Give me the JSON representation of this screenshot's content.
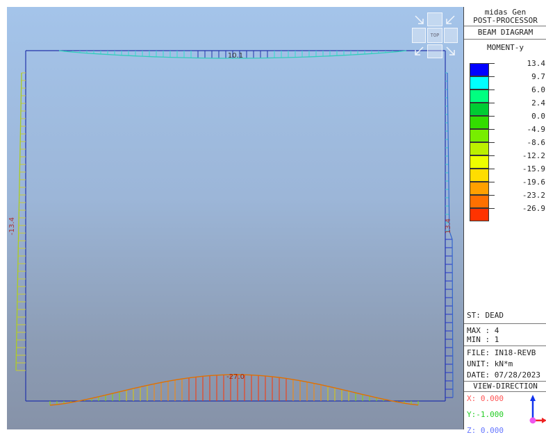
{
  "app": {
    "title": "midas Gen",
    "subtitle": "POST-PROCESSOR"
  },
  "panel": {
    "diagram_type": "BEAM DIAGRAM",
    "component": "MOMENT-y",
    "legend": [
      {
        "value": "13.4",
        "color": "#0000ff"
      },
      {
        "value": "9.7",
        "color": "#00ffff"
      },
      {
        "value": "6.0",
        "color": "#00ff80"
      },
      {
        "value": "2.4",
        "color": "#00cc33"
      },
      {
        "value": "0.0",
        "color": "#33dd00"
      },
      {
        "value": "-4.9",
        "color": "#77ee00"
      },
      {
        "value": "-8.6",
        "color": "#bbf000"
      },
      {
        "value": "-12.2",
        "color": "#eeff00"
      },
      {
        "value": "-15.9",
        "color": "#ffdd00"
      },
      {
        "value": "-19.6",
        "color": "#ffa000"
      },
      {
        "value": "-23.2",
        "color": "#ff7000"
      },
      {
        "value": "-26.9",
        "color": "#ff3300"
      }
    ],
    "load_case": "ST: DEAD",
    "max": "MAX : 4",
    "min": "MIN : 1",
    "file": "FILE: IN18-REVB",
    "unit": "UNIT: kN*m",
    "date": "DATE: 07/28/2023",
    "view_direction": "VIEW-DIRECTION",
    "vx": "X: 0.000",
    "vy": "Y:-1.000",
    "vz": "Z: 0.000"
  },
  "view_cube": {
    "top_label": "TOP"
  },
  "diagram": {
    "top_beam_label": "10.1",
    "left_column_label": "-13.4",
    "right_column_label": "13.4",
    "bottom_beam_label": "-27.0"
  }
}
